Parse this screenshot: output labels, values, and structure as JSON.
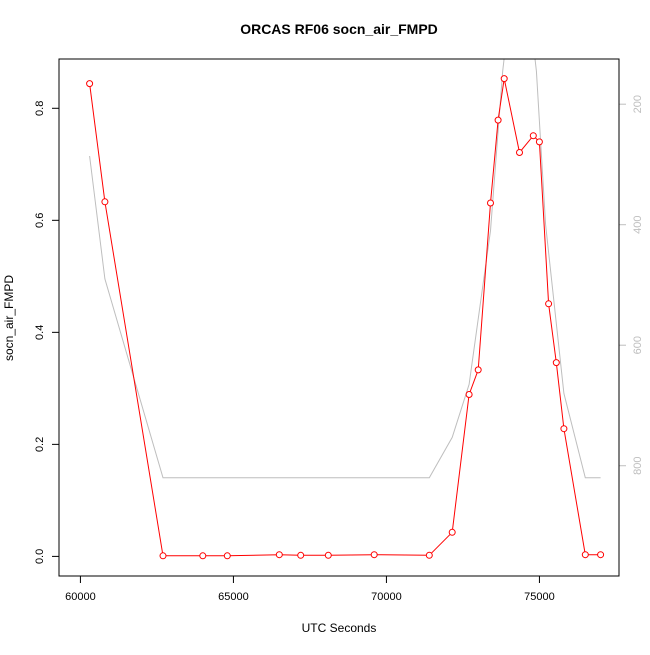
{
  "chart_data": {
    "type": "line",
    "title": "ORCAS RF06 socn_air_FMPD",
    "xlabel": "UTC Seconds",
    "ylabel": "socn_air_FMPD",
    "xlim": [
      59300,
      77600
    ],
    "ylim": [
      -0.035,
      0.888
    ],
    "x_ticks": [
      60000,
      65000,
      70000,
      75000
    ],
    "x_tick_labels": [
      "60000",
      "65000",
      "70000",
      "75000"
    ],
    "y_ticks": [
      0.0,
      0.2,
      0.4,
      0.6,
      0.8
    ],
    "y_tick_labels": [
      "0.0",
      "0.2",
      "0.4",
      "0.6",
      "0.8"
    ],
    "y2_ticks": [
      200,
      400,
      600,
      800
    ],
    "y2_tick_labels": [
      "200",
      "400",
      "600",
      "800"
    ],
    "y2_lim_inverted": [
      983,
      125
    ],
    "series": [
      {
        "color": "#ff0000",
        "axis": "left",
        "marker": "open-circle",
        "points": [
          [
            60300,
            0.844
          ],
          [
            60800,
            0.633
          ],
          [
            62700,
            0.001
          ],
          [
            64000,
            0.001
          ],
          [
            64800,
            0.001
          ],
          [
            66500,
            0.003
          ],
          [
            67200,
            0.002
          ],
          [
            68100,
            0.002
          ],
          [
            69600,
            0.003
          ],
          [
            71400,
            0.002
          ],
          [
            72150,
            0.043
          ],
          [
            72700,
            0.289
          ],
          [
            73000,
            0.333
          ],
          [
            73400,
            0.631
          ],
          [
            73650,
            0.779
          ],
          [
            73850,
            0.853
          ],
          [
            74350,
            0.721
          ],
          [
            74800,
            0.751
          ],
          [
            75000,
            0.74
          ],
          [
            75300,
            0.451
          ],
          [
            75550,
            0.346
          ],
          [
            75800,
            0.228
          ],
          [
            76500,
            0.003
          ],
          [
            77000,
            0.003
          ]
        ]
      },
      {
        "color": "#bebebe",
        "axis": "right",
        "marker": "none",
        "points": [
          [
            60300,
            286
          ],
          [
            60800,
            490
          ],
          [
            62700,
            820
          ],
          [
            71400,
            820
          ],
          [
            72150,
            753
          ],
          [
            72700,
            665
          ],
          [
            73400,
            410
          ],
          [
            73800,
            145
          ],
          [
            73900,
            100
          ],
          [
            74800,
            100
          ],
          [
            74900,
            145
          ],
          [
            75200,
            400
          ],
          [
            75800,
            680
          ],
          [
            76500,
            820
          ],
          [
            77000,
            820
          ]
        ]
      }
    ]
  }
}
